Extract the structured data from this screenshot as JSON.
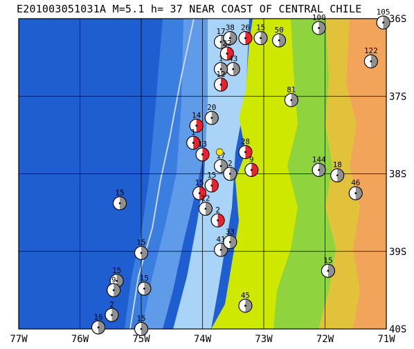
{
  "header": {
    "title": "E201003051031A M=5.1 h= 37 NEAR COAST OF CENTRAL CHILE"
  },
  "map": {
    "lon_range": [
      -77,
      -71
    ],
    "lat_range": [
      -40,
      -36
    ],
    "lon_ticks": [
      {
        "value": -77,
        "label": "77W"
      },
      {
        "value": -76,
        "label": "76W"
      },
      {
        "value": -75,
        "label": "75W"
      },
      {
        "value": -74,
        "label": "74W"
      },
      {
        "value": -73,
        "label": "73W"
      },
      {
        "value": -72,
        "label": "72W"
      },
      {
        "value": -71,
        "label": "71W"
      }
    ],
    "lat_ticks": [
      {
        "value": -36,
        "label": "36S"
      },
      {
        "value": -37,
        "label": "37S"
      },
      {
        "value": -38,
        "label": "38S"
      },
      {
        "value": -39,
        "label": "39S"
      },
      {
        "value": -40,
        "label": "40S"
      }
    ],
    "colors": {
      "deep_ocean": "#1f5ed0",
      "mid_ocean": "#3a7ee0",
      "shelf": "#7fb3f0",
      "coast_shallow": "#a9d3f7",
      "lowland": "#cfe800",
      "hills": "#8fd33f",
      "upland": "#e2c23a",
      "mountain": "#f2a55a",
      "grid": "#000000",
      "highlight": "#e8232f",
      "event_star": "#ffe100"
    },
    "events": [
      {
        "lon": -75.35,
        "lat": -38.38,
        "depth": "15",
        "highlight": false
      },
      {
        "lon": -75.0,
        "lat": -39.02,
        "depth": "15",
        "highlight": false
      },
      {
        "lon": -75.4,
        "lat": -39.38,
        "depth": "15",
        "highlight": false
      },
      {
        "lon": -75.45,
        "lat": -39.5,
        "depth": "9",
        "highlight": false
      },
      {
        "lon": -74.95,
        "lat": -39.48,
        "depth": "15",
        "highlight": false
      },
      {
        "lon": -75.48,
        "lat": -39.82,
        "depth": "2",
        "highlight": false
      },
      {
        "lon": -75.7,
        "lat": -39.98,
        "depth": "16",
        "highlight": false
      },
      {
        "lon": -75.0,
        "lat": -40.0,
        "depth": "15",
        "highlight": false
      },
      {
        "lon": -73.7,
        "lat": -36.3,
        "depth": "17",
        "highlight": false
      },
      {
        "lon": -73.55,
        "lat": -36.25,
        "depth": "38",
        "highlight": false
      },
      {
        "lon": -73.3,
        "lat": -36.25,
        "depth": "26",
        "highlight": true
      },
      {
        "lon": -73.05,
        "lat": -36.25,
        "depth": "15",
        "highlight": false
      },
      {
        "lon": -72.75,
        "lat": -36.28,
        "depth": "50",
        "highlight": false
      },
      {
        "lon": -72.1,
        "lat": -36.12,
        "depth": "100",
        "highlight": false
      },
      {
        "lon": -71.05,
        "lat": -36.05,
        "depth": "105",
        "highlight": false
      },
      {
        "lon": -71.25,
        "lat": -36.55,
        "depth": "122",
        "highlight": false
      },
      {
        "lon": -73.6,
        "lat": -36.45,
        "depth": "22",
        "highlight": true
      },
      {
        "lon": -73.5,
        "lat": -36.65,
        "depth": "43",
        "highlight": false
      },
      {
        "lon": -73.7,
        "lat": -36.65,
        "depth": "1",
        "highlight": false
      },
      {
        "lon": -73.7,
        "lat": -36.85,
        "depth": "12",
        "highlight": true
      },
      {
        "lon": -72.55,
        "lat": -37.05,
        "depth": "81",
        "highlight": false
      },
      {
        "lon": -73.85,
        "lat": -37.28,
        "depth": "20",
        "highlight": false
      },
      {
        "lon": -74.1,
        "lat": -37.38,
        "depth": "14",
        "highlight": true
      },
      {
        "lon": -74.15,
        "lat": -37.6,
        "depth": "1",
        "highlight": true
      },
      {
        "lon": -74.0,
        "lat": -37.75,
        "depth": "13",
        "highlight": true
      },
      {
        "lon": -73.7,
        "lat": -37.9,
        "depth": "17",
        "highlight": false
      },
      {
        "lon": -73.3,
        "lat": -37.72,
        "depth": "28",
        "highlight": true
      },
      {
        "lon": -73.2,
        "lat": -37.95,
        "depth": "9",
        "highlight": true
      },
      {
        "lon": -73.55,
        "lat": -38.0,
        "depth": "2",
        "highlight": false
      },
      {
        "lon": -72.1,
        "lat": -37.95,
        "depth": "144",
        "highlight": false
      },
      {
        "lon": -71.8,
        "lat": -38.02,
        "depth": "18",
        "highlight": false
      },
      {
        "lon": -71.5,
        "lat": -38.25,
        "depth": "46",
        "highlight": false
      },
      {
        "lon": -73.85,
        "lat": -38.15,
        "depth": "15",
        "highlight": true
      },
      {
        "lon": -74.05,
        "lat": -38.25,
        "depth": "15",
        "highlight": true
      },
      {
        "lon": -73.95,
        "lat": -38.45,
        "depth": "12",
        "highlight": false
      },
      {
        "lon": -73.75,
        "lat": -38.6,
        "depth": "2",
        "highlight": true
      },
      {
        "lon": -73.7,
        "lat": -38.98,
        "depth": "41",
        "highlight": false
      },
      {
        "lon": -73.55,
        "lat": -38.88,
        "depth": "33",
        "highlight": false
      },
      {
        "lon": -71.95,
        "lat": -39.25,
        "depth": "15",
        "highlight": false
      },
      {
        "lon": -73.3,
        "lat": -39.7,
        "depth": "45",
        "highlight": false
      }
    ],
    "epicenter": {
      "lon": -73.72,
      "lat": -37.72
    }
  }
}
